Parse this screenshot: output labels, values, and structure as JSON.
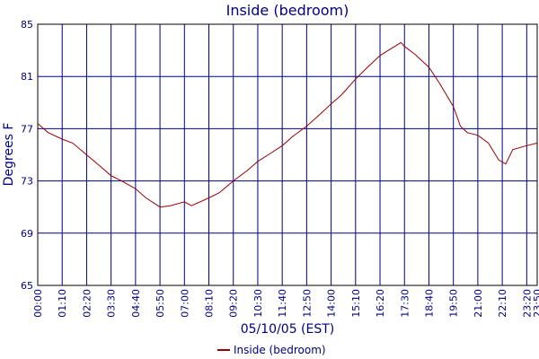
{
  "chart_data": {
    "type": "line",
    "title": "Inside (bedroom)",
    "x_label": "05/10/05 (EST)",
    "y_label": "Degrees F",
    "x": [
      "00:00",
      "00:30",
      "01:10",
      "01:40",
      "02:20",
      "03:00",
      "03:30",
      "04:00",
      "04:40",
      "05:10",
      "05:50",
      "06:20",
      "07:00",
      "07:20",
      "08:10",
      "08:40",
      "09:20",
      "10:00",
      "10:30",
      "11:00",
      "11:40",
      "12:10",
      "12:50",
      "13:20",
      "14:00",
      "14:30",
      "15:10",
      "15:40",
      "16:20",
      "16:50",
      "17:20",
      "17:30",
      "18:00",
      "18:40",
      "19:10",
      "19:50",
      "20:10",
      "20:30",
      "21:00",
      "21:30",
      "22:00",
      "22:20",
      "22:40",
      "23:20",
      "23:50"
    ],
    "series": [
      {
        "name": "Inside (bedroom)",
        "color": "#990000",
        "values": [
          77.4,
          76.7,
          76.2,
          75.9,
          75.0,
          74.1,
          73.4,
          73.0,
          72.4,
          71.7,
          71.0,
          71.1,
          71.4,
          71.1,
          71.7,
          72.1,
          73.0,
          73.8,
          74.5,
          75.0,
          75.7,
          76.4,
          77.2,
          77.9,
          78.9,
          79.6,
          80.8,
          81.6,
          82.6,
          83.1,
          83.6,
          83.3,
          82.7,
          81.7,
          80.5,
          78.7,
          77.2,
          76.7,
          76.5,
          75.9,
          74.6,
          74.3,
          75.4,
          75.7,
          75.9
        ]
      }
    ],
    "xlim": [
      "00:00",
      "23:50"
    ],
    "xticks": [
      "00:00",
      "01:10",
      "02:20",
      "03:30",
      "04:40",
      "05:50",
      "07:00",
      "08:10",
      "09:20",
      "10:30",
      "11:40",
      "12:50",
      "14:00",
      "15:10",
      "16:20",
      "17:30",
      "18:40",
      "19:50",
      "21:00",
      "22:10",
      "23:20",
      "23:50"
    ],
    "ylim": [
      65,
      85
    ],
    "yticks": [
      65,
      69,
      73,
      77,
      81,
      85
    ],
    "grid": true
  }
}
